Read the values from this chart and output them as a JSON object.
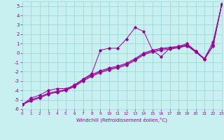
{
  "xlabel": "Windchill (Refroidissement éolien,°C)",
  "bg_color": "#c8f0f0",
  "grid_color": "#a0d8d8",
  "line_color": "#990099",
  "xlim": [
    0,
    23
  ],
  "ylim": [
    -6,
    5.5
  ],
  "xticks": [
    0,
    1,
    2,
    3,
    4,
    5,
    6,
    7,
    8,
    9,
    10,
    11,
    12,
    13,
    14,
    15,
    16,
    17,
    18,
    19,
    20,
    21,
    22,
    23
  ],
  "yticks": [
    -6,
    -5,
    -4,
    -3,
    -2,
    -1,
    0,
    1,
    2,
    3,
    4,
    5
  ],
  "line1_x": [
    0,
    1,
    2,
    3,
    4,
    5,
    6,
    7,
    8,
    9,
    10,
    11,
    12,
    13,
    14,
    15,
    16,
    17,
    18,
    19,
    20,
    21,
    22,
    23
  ],
  "line1_y": [
    -5.5,
    -4.8,
    -4.5,
    -4.0,
    -3.8,
    -3.8,
    -3.5,
    -2.8,
    -2.2,
    0.3,
    0.5,
    0.5,
    1.5,
    2.7,
    2.3,
    0.3,
    -0.4,
    0.5,
    0.7,
    1.0,
    0.2,
    -0.6,
    1.2,
    5.2
  ],
  "line2_x": [
    0,
    1,
    2,
    3,
    4,
    5,
    6,
    7,
    8,
    9,
    10,
    11,
    12,
    13,
    14,
    15,
    16,
    17,
    18,
    19,
    20,
    21,
    22,
    23
  ],
  "line2_y": [
    -5.5,
    -5.0,
    -4.7,
    -4.3,
    -4.1,
    -4.0,
    -3.5,
    -2.9,
    -2.4,
    -2.0,
    -1.7,
    -1.5,
    -1.2,
    -0.7,
    -0.1,
    0.2,
    0.4,
    0.5,
    0.6,
    0.8,
    0.1,
    -0.6,
    0.8,
    5.2
  ],
  "line3_x": [
    0,
    1,
    2,
    3,
    4,
    5,
    6,
    7,
    8,
    9,
    10,
    11,
    12,
    13,
    14,
    15,
    16,
    17,
    18,
    19,
    20,
    21,
    22,
    23
  ],
  "line3_y": [
    -5.5,
    -5.0,
    -4.7,
    -4.3,
    -4.1,
    -3.9,
    -3.4,
    -2.8,
    -2.3,
    -1.9,
    -1.6,
    -1.4,
    -1.1,
    -0.6,
    0.0,
    0.3,
    0.5,
    0.6,
    0.7,
    0.85,
    0.2,
    -0.65,
    0.85,
    5.2
  ],
  "line4_x": [
    0,
    1,
    2,
    3,
    4,
    5,
    6,
    7,
    8,
    9,
    10,
    11,
    12,
    13,
    14,
    15,
    16,
    17,
    18,
    19,
    20,
    21,
    22,
    23
  ],
  "line4_y": [
    -5.5,
    -5.1,
    -4.8,
    -4.4,
    -4.2,
    -4.0,
    -3.6,
    -3.0,
    -2.5,
    -2.1,
    -1.8,
    -1.6,
    -1.3,
    -0.8,
    -0.2,
    0.1,
    0.3,
    0.4,
    0.55,
    0.75,
    0.1,
    -0.7,
    0.75,
    5.2
  ]
}
